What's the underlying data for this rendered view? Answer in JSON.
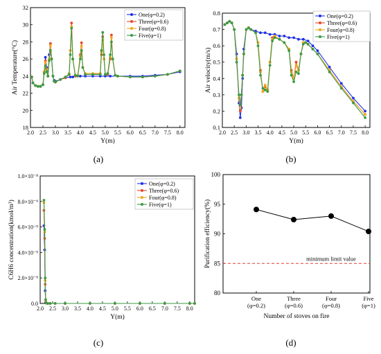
{
  "figure": {
    "captions": [
      "(a)",
      "(b)",
      "(c)",
      "(d)"
    ]
  },
  "colors": {
    "series": [
      "#1f2fe6",
      "#e8472b",
      "#f0a71a",
      "#3a9a45"
    ],
    "d_line": "#000000",
    "limit_line": "#e53b32"
  },
  "chart_data": [
    {
      "type": "line",
      "xlabel": "Y(m)",
      "ylabel": "Air Temperature(°C)",
      "xlim": [
        2.0,
        8.2
      ],
      "ylim": [
        18,
        32
      ],
      "xticks": [
        "2.0",
        "2.5",
        "3.0",
        "3.5",
        "4.0",
        "4.5",
        "5.0",
        "5.5",
        "6.0",
        "6.5",
        "7.0",
        "7.5",
        "8.0"
      ],
      "yticks": [
        "18",
        "20",
        "22",
        "24",
        "26",
        "28",
        "30",
        "32"
      ],
      "legend": "top-right",
      "legend_labels": [
        "One(φ=0.2)",
        "Three(φ=0.6)",
        "Four(φ=0.8)",
        "Five(φ=1)"
      ],
      "series": [
        {
          "name": "One(φ=0.2)",
          "x": [
            2.05,
            2.1,
            2.2,
            2.3,
            2.4,
            2.5,
            2.55,
            2.6,
            2.65,
            2.7,
            2.75,
            2.8,
            2.85,
            2.9,
            2.95,
            3.0,
            3.2,
            3.4,
            3.6,
            3.7,
            3.8,
            4.0,
            4.2,
            4.5,
            4.8,
            5.0,
            5.2,
            5.5,
            6.0,
            6.5,
            7.0,
            7.5,
            8.0
          ],
          "y": [
            23.9,
            23.2,
            22.9,
            22.8,
            22.8,
            23.0,
            24.5,
            26.2,
            25.0,
            24.0,
            26.5,
            27.8,
            26.0,
            24.0,
            23.5,
            23.4,
            23.6,
            23.8,
            23.9,
            23.9,
            24.0,
            24.0,
            24.0,
            24.0,
            24.0,
            24.0,
            24.0,
            24.0,
            24.0,
            24.0,
            24.1,
            24.2,
            24.5
          ]
        },
        {
          "name": "Three(φ=0.6)",
          "x": [
            2.05,
            2.1,
            2.2,
            2.3,
            2.4,
            2.5,
            2.55,
            2.6,
            2.65,
            2.7,
            2.75,
            2.8,
            2.85,
            2.9,
            2.95,
            3.0,
            3.2,
            3.4,
            3.55,
            3.6,
            3.65,
            3.7,
            3.8,
            3.9,
            4.0,
            4.05,
            4.1,
            4.2,
            4.5,
            4.8,
            4.85,
            4.9,
            4.95,
            5.0,
            5.1,
            5.2,
            5.25,
            5.3,
            5.4,
            5.5,
            6.0,
            6.5,
            7.0,
            7.5,
            8.0
          ],
          "y": [
            23.9,
            23.2,
            22.9,
            22.8,
            22.8,
            23.0,
            24.5,
            25.8,
            24.8,
            24.0,
            26.0,
            27.8,
            26.0,
            24.0,
            23.4,
            23.3,
            23.6,
            23.8,
            24.2,
            27.0,
            30.2,
            26.0,
            24.0,
            24.0,
            26.5,
            27.9,
            25.0,
            24.2,
            24.2,
            24.3,
            26.5,
            28.6,
            26.0,
            24.2,
            24.2,
            26.0,
            28.8,
            26.0,
            24.1,
            24.0,
            23.9,
            23.9,
            24.0,
            24.2,
            24.6
          ]
        },
        {
          "name": "Four(φ=0.8)",
          "x": [
            2.05,
            2.1,
            2.2,
            2.3,
            2.4,
            2.5,
            2.55,
            2.6,
            2.65,
            2.7,
            2.75,
            2.8,
            2.85,
            2.9,
            2.95,
            3.0,
            3.2,
            3.4,
            3.55,
            3.6,
            3.65,
            3.7,
            3.8,
            3.9,
            4.0,
            4.05,
            4.1,
            4.2,
            4.5,
            4.8,
            4.85,
            4.9,
            4.95,
            5.0,
            5.1,
            5.2,
            5.25,
            5.3,
            5.4,
            5.5,
            6.0,
            6.5,
            7.0,
            7.5,
            8.0
          ],
          "y": [
            23.9,
            23.2,
            22.9,
            22.8,
            22.8,
            23.0,
            24.5,
            25.6,
            24.8,
            24.0,
            26.0,
            27.6,
            26.0,
            24.0,
            23.4,
            23.3,
            23.6,
            23.9,
            24.3,
            27.0,
            29.8,
            26.0,
            24.1,
            24.1,
            26.3,
            27.5,
            25.0,
            24.3,
            24.3,
            24.3,
            26.8,
            28.2,
            26.0,
            24.2,
            24.3,
            26.2,
            28.5,
            26.0,
            24.1,
            24.0,
            23.9,
            23.9,
            24.0,
            24.2,
            24.6
          ]
        },
        {
          "name": "Five(φ=1)",
          "x": [
            2.05,
            2.1,
            2.2,
            2.3,
            2.4,
            2.5,
            2.55,
            2.6,
            2.65,
            2.7,
            2.75,
            2.8,
            2.85,
            2.9,
            2.95,
            3.0,
            3.2,
            3.4,
            3.55,
            3.6,
            3.65,
            3.7,
            3.8,
            3.9,
            4.0,
            4.05,
            4.1,
            4.2,
            4.5,
            4.8,
            4.85,
            4.9,
            4.95,
            5.0,
            5.1,
            5.2,
            5.25,
            5.3,
            5.4,
            5.5,
            6.0,
            6.5,
            7.0,
            7.5,
            8.0
          ],
          "y": [
            23.9,
            23.2,
            22.9,
            22.8,
            22.8,
            23.0,
            24.3,
            25.2,
            24.5,
            24.0,
            25.8,
            27.0,
            26.0,
            24.0,
            23.4,
            23.3,
            23.6,
            23.9,
            24.2,
            26.5,
            29.6,
            26.0,
            24.1,
            24.0,
            26.0,
            27.0,
            25.0,
            24.2,
            24.2,
            24.2,
            27.0,
            29.1,
            26.5,
            24.2,
            24.3,
            26.5,
            28.0,
            26.0,
            24.1,
            24.0,
            23.9,
            23.9,
            24.0,
            24.2,
            24.6
          ]
        }
      ]
    },
    {
      "type": "line",
      "xlabel": "Y(m)",
      "ylabel": "Air velocity(m/s)",
      "xlim": [
        2.0,
        8.2
      ],
      "ylim": [
        0.1,
        0.8
      ],
      "xticks": [
        "2.0",
        "2.5",
        "3.0",
        "3.5",
        "4.0",
        "4.5",
        "5.0",
        "5.5",
        "6.0",
        "6.5",
        "7.0",
        "7.5",
        "8.0"
      ],
      "yticks": [
        "0.1",
        "0.2",
        "0.3",
        "0.4",
        "0.5",
        "0.6",
        "0.7",
        "0.8"
      ],
      "legend": "top-right",
      "legend_labels": [
        "One(φ=0.2)",
        "Three(φ=0.6)",
        "Four(φ=0.8)",
        "Five(φ=1)"
      ],
      "series": [
        {
          "name": "One(φ=0.2)",
          "x": [
            2.1,
            2.2,
            2.3,
            2.4,
            2.5,
            2.6,
            2.7,
            2.75,
            2.8,
            2.85,
            2.9,
            3.0,
            3.1,
            3.2,
            3.4,
            3.6,
            3.8,
            4.0,
            4.2,
            4.4,
            4.6,
            4.8,
            5.0,
            5.2,
            5.4,
            5.6,
            5.8,
            6.0,
            6.5,
            7.0,
            7.5,
            8.0
          ],
          "y": [
            0.73,
            0.74,
            0.75,
            0.74,
            0.7,
            0.55,
            0.25,
            0.16,
            0.22,
            0.4,
            0.58,
            0.7,
            0.71,
            0.7,
            0.69,
            0.68,
            0.68,
            0.67,
            0.67,
            0.66,
            0.66,
            0.65,
            0.65,
            0.64,
            0.64,
            0.63,
            0.6,
            0.57,
            0.47,
            0.37,
            0.28,
            0.2
          ]
        },
        {
          "name": "Three(φ=0.6)",
          "x": [
            2.1,
            2.2,
            2.3,
            2.4,
            2.5,
            2.6,
            2.7,
            2.75,
            2.8,
            2.85,
            2.9,
            3.0,
            3.1,
            3.2,
            3.4,
            3.5,
            3.6,
            3.7,
            3.8,
            3.9,
            4.0,
            4.1,
            4.2,
            4.4,
            4.6,
            4.8,
            4.9,
            5.0,
            5.1,
            5.2,
            5.3,
            5.4,
            5.5,
            5.6,
            5.8,
            6.0,
            6.5,
            7.0,
            7.5,
            8.0
          ],
          "y": [
            0.73,
            0.74,
            0.75,
            0.74,
            0.7,
            0.52,
            0.28,
            0.2,
            0.3,
            0.42,
            0.55,
            0.7,
            0.71,
            0.7,
            0.68,
            0.62,
            0.45,
            0.32,
            0.35,
            0.33,
            0.5,
            0.65,
            0.66,
            0.64,
            0.62,
            0.58,
            0.45,
            0.4,
            0.5,
            0.45,
            0.55,
            0.62,
            0.62,
            0.61,
            0.58,
            0.55,
            0.45,
            0.35,
            0.26,
            0.18
          ]
        },
        {
          "name": "Four(φ=0.8)",
          "x": [
            2.1,
            2.2,
            2.3,
            2.4,
            2.5,
            2.6,
            2.7,
            2.75,
            2.8,
            2.85,
            2.9,
            3.0,
            3.1,
            3.2,
            3.4,
            3.5,
            3.6,
            3.7,
            3.8,
            3.9,
            4.0,
            4.1,
            4.2,
            4.4,
            4.6,
            4.8,
            4.9,
            5.0,
            5.1,
            5.2,
            5.3,
            5.4,
            5.5,
            5.6,
            5.8,
            6.0,
            6.5,
            7.0,
            7.5,
            8.0
          ],
          "y": [
            0.73,
            0.74,
            0.75,
            0.74,
            0.7,
            0.52,
            0.28,
            0.22,
            0.3,
            0.42,
            0.55,
            0.7,
            0.71,
            0.7,
            0.68,
            0.62,
            0.44,
            0.32,
            0.36,
            0.33,
            0.5,
            0.64,
            0.66,
            0.64,
            0.62,
            0.58,
            0.44,
            0.4,
            0.48,
            0.45,
            0.55,
            0.62,
            0.62,
            0.61,
            0.58,
            0.55,
            0.45,
            0.35,
            0.26,
            0.18
          ]
        },
        {
          "name": "Five(φ=1)",
          "x": [
            2.1,
            2.2,
            2.3,
            2.4,
            2.5,
            2.6,
            2.7,
            2.75,
            2.8,
            2.85,
            2.9,
            3.0,
            3.1,
            3.2,
            3.4,
            3.5,
            3.6,
            3.7,
            3.8,
            3.9,
            4.0,
            4.1,
            4.2,
            4.4,
            4.6,
            4.8,
            4.9,
            5.0,
            5.1,
            5.2,
            5.3,
            5.4,
            5.5,
            5.6,
            5.8,
            6.0,
            6.5,
            7.0,
            7.5,
            8.0
          ],
          "y": [
            0.73,
            0.74,
            0.75,
            0.74,
            0.7,
            0.5,
            0.3,
            0.24,
            0.3,
            0.42,
            0.55,
            0.7,
            0.71,
            0.7,
            0.68,
            0.6,
            0.42,
            0.34,
            0.33,
            0.32,
            0.48,
            0.63,
            0.65,
            0.64,
            0.62,
            0.57,
            0.42,
            0.38,
            0.44,
            0.43,
            0.55,
            0.61,
            0.62,
            0.61,
            0.58,
            0.55,
            0.44,
            0.34,
            0.25,
            0.16
          ]
        }
      ]
    },
    {
      "type": "line",
      "xlabel": "Y(m)",
      "ylabel": "C6H6 concentration(kmol/m³)",
      "xlim": [
        2.0,
        8.2
      ],
      "ylim": [
        0,
        1e-08
      ],
      "xticks": [
        "2.0",
        "2.5",
        "3.0",
        "3.5",
        "4.0",
        "4.5",
        "5.0",
        "5.5",
        "6.0",
        "6.5",
        "7.0",
        "7.5",
        "8.0"
      ],
      "yticks": [
        "0.0",
        "2.0×10⁻⁹",
        "4.0×10⁻⁹",
        "6.0×10⁻⁹",
        "8.0×10⁻⁹",
        "1.0×10⁻⁸"
      ],
      "legend": "top-right",
      "legend_labels": [
        "One(φ=0.2)",
        "Three(φ=0.6)",
        "Four(φ=0.8)",
        "Five(φ=1)"
      ],
      "series": [
        {
          "name": "One(φ=0.2)",
          "x": [
            2.15,
            2.18,
            2.2,
            2.22,
            2.25,
            2.3,
            2.4,
            2.6,
            3.0,
            4.0,
            5.0,
            6.0,
            7.0,
            8.0,
            8.2
          ],
          "y": [
            6.1e-09,
            4.2e-09,
            1e-09,
            1e-10,
            2e-11,
            0,
            0,
            0,
            0,
            0,
            0,
            0,
            0,
            0,
            0
          ]
        },
        {
          "name": "Three(φ=0.6)",
          "x": [
            2.15,
            2.18,
            2.2,
            2.22,
            2.25,
            2.3,
            2.4,
            2.6,
            3.0,
            4.0,
            5.0,
            6.0,
            7.0,
            8.0,
            8.2
          ],
          "y": [
            7.3e-09,
            5.1e-09,
            1.5e-09,
            2e-10,
            2e-11,
            0,
            0,
            0,
            0,
            0,
            0,
            0,
            0,
            0,
            0
          ]
        },
        {
          "name": "Four(φ=0.8)",
          "x": [
            2.15,
            2.18,
            2.2,
            2.22,
            2.25,
            2.3,
            2.4,
            2.6,
            3.0,
            4.0,
            5.0,
            6.0,
            7.0,
            8.0,
            8.2
          ],
          "y": [
            7.9e-09,
            5.6e-09,
            1.8e-09,
            2e-10,
            2e-11,
            0,
            0,
            0,
            0,
            0,
            0,
            0,
            0,
            0,
            0
          ]
        },
        {
          "name": "Five(φ=1)",
          "x": [
            2.15,
            2.18,
            2.2,
            2.22,
            2.25,
            2.3,
            2.4,
            2.6,
            3.0,
            4.0,
            5.0,
            6.0,
            7.0,
            8.0,
            8.2
          ],
          "y": [
            8.1e-09,
            5.8e-09,
            2e-09,
            3e-10,
            2e-11,
            0,
            0,
            0,
            0,
            0,
            0,
            0,
            0,
            0,
            0
          ]
        }
      ]
    },
    {
      "type": "line",
      "xlabel": "Number of stoves on fire",
      "ylabel": "Purification efficiency(%)",
      "ylim": [
        80,
        100
      ],
      "yticks": [
        "80",
        "85",
        "90",
        "95",
        "100"
      ],
      "categories": [
        "One",
        "Three",
        "Four",
        "Five"
      ],
      "category_sublabels": [
        "(φ=0.2)",
        "(φ=0.6)",
        "(φ=0.8)",
        "(φ=1)"
      ],
      "values": [
        94.1,
        92.4,
        93.0,
        90.4
      ],
      "reference_line": {
        "value": 85,
        "label": "minimum limit value"
      }
    }
  ]
}
